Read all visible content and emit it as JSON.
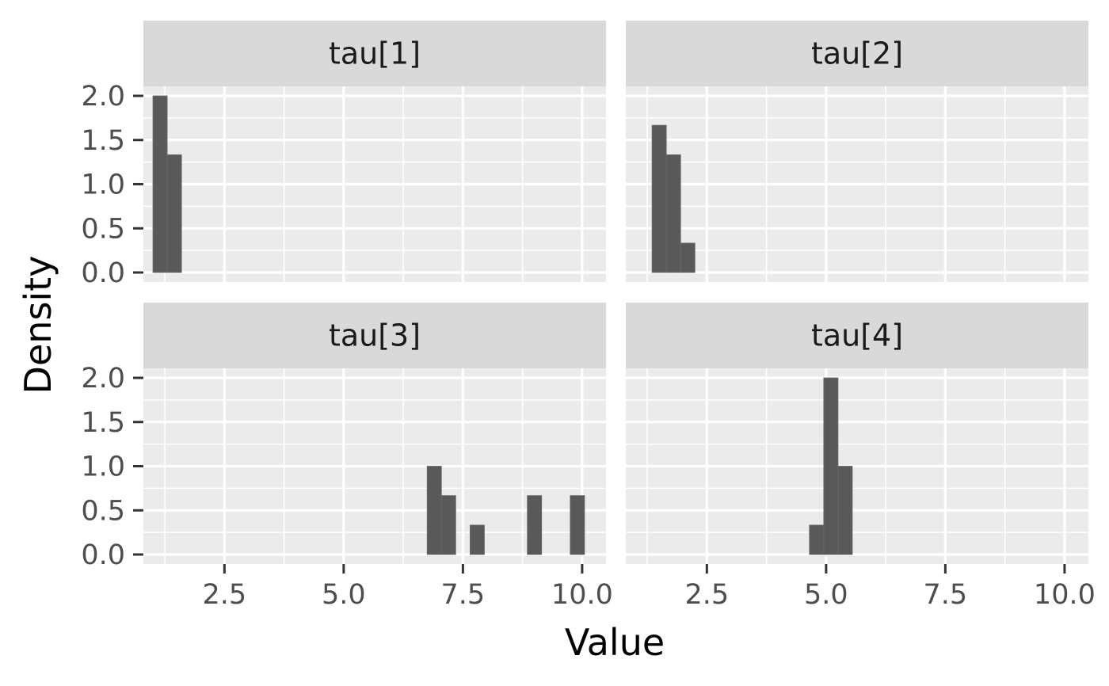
{
  "chart_data": {
    "type": "bar",
    "subtype": "faceted-histogram",
    "xlabel": "Value",
    "ylabel": "Density",
    "xlim": [
      0.8,
      10.5
    ],
    "ylim": [
      0,
      2.0
    ],
    "x_ticks": [
      "2.5",
      "5.0",
      "7.5",
      "10.0"
    ],
    "y_ticks": [
      "0.0",
      "0.5",
      "1.0",
      "1.5",
      "2.0"
    ],
    "bin_width": 0.3,
    "grid": true,
    "colors": {
      "bar": "#595959",
      "panel": "#ebebeb",
      "strip": "#d9d9d9",
      "grid": "#ffffff"
    },
    "facets": [
      {
        "label": "tau[1]",
        "bins": [
          {
            "x0": 1.0,
            "x1": 1.3,
            "density": 2.0
          },
          {
            "x0": 1.3,
            "x1": 1.6,
            "density": 1.333
          }
        ]
      },
      {
        "label": "tau[2]",
        "bins": [
          {
            "x0": 1.35,
            "x1": 1.65,
            "density": 1.667
          },
          {
            "x0": 1.65,
            "x1": 1.95,
            "density": 1.333
          },
          {
            "x0": 1.95,
            "x1": 2.25,
            "density": 0.333
          }
        ]
      },
      {
        "label": "tau[3]",
        "bins": [
          {
            "x0": 6.75,
            "x1": 7.05,
            "density": 1.0
          },
          {
            "x0": 7.05,
            "x1": 7.35,
            "density": 0.667
          },
          {
            "x0": 7.65,
            "x1": 7.95,
            "density": 0.333
          },
          {
            "x0": 8.85,
            "x1": 9.15,
            "density": 0.667
          },
          {
            "x0": 9.75,
            "x1": 10.05,
            "density": 0.667
          }
        ]
      },
      {
        "label": "tau[4]",
        "bins": [
          {
            "x0": 4.65,
            "x1": 4.95,
            "density": 0.333
          },
          {
            "x0": 4.95,
            "x1": 5.25,
            "density": 2.0
          },
          {
            "x0": 5.25,
            "x1": 5.55,
            "density": 1.0
          }
        ]
      }
    ]
  }
}
